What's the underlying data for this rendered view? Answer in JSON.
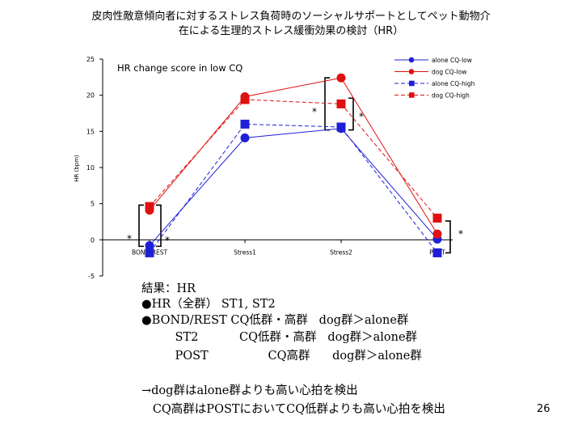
{
  "slide": {
    "title_line1": "皮肉性敵意傾向者に対するストレス負荷時のソーシャルサポートとしてペット動物介",
    "title_line2": "在による生理的ストレス緩衝効果の検討（HR）",
    "page_number": "26"
  },
  "summary": {
    "line1": "結果：HR",
    "line2": "●HR（全群） ST1, ST2",
    "line3": "●BOND/REST CQ低群・高群   dog群＞alone群",
    "line4": "         ST2           CQ低群・高群   dog群＞alone群",
    "line5": "         POST                CQ高群      dog群＞alone群",
    "line6": "→dog群はalone群よりも高い心拍を検出",
    "line7": "   CQ高群はPOSTにおいてCQ低群よりも高い心拍を検出"
  },
  "chart_data": {
    "type": "line",
    "title": "HR change score in low CQ",
    "ylabel": "HR (bpm)",
    "xlabel": "",
    "categories": [
      "BOND/REST",
      "Stress1",
      "Stress2",
      "POST"
    ],
    "ylim": [
      -5,
      25
    ],
    "yticks": [
      -5,
      0,
      5,
      10,
      15,
      20,
      25
    ],
    "legend_position": "top-right",
    "series": [
      {
        "name": "alone CQ-low",
        "values": [
          -0.8,
          14.1,
          15.4,
          0.1
        ],
        "color": "#1f1fd8",
        "dashed": false,
        "marker": "circle"
      },
      {
        "name": "dog CQ-low",
        "values": [
          4.1,
          19.8,
          22.4,
          0.8
        ],
        "color": "#e01010",
        "dashed": false,
        "marker": "circle"
      },
      {
        "name": "alone CQ-high",
        "values": [
          -1.8,
          16.0,
          15.6,
          -1.8
        ],
        "color": "#1f1fd8",
        "dashed": true,
        "marker": "square"
      },
      {
        "name": "dog CQ-high",
        "values": [
          4.6,
          19.4,
          18.8,
          3.0
        ],
        "color": "#e01010",
        "dashed": true,
        "marker": "square"
      }
    ],
    "annotations": [
      {
        "text": "*",
        "category": "BOND/REST"
      },
      {
        "text": "*",
        "category": "BOND/REST"
      },
      {
        "text": "*",
        "category": "Stress2"
      },
      {
        "text": "*",
        "category": "Stress2"
      },
      {
        "text": "*",
        "category": "POST"
      }
    ]
  }
}
